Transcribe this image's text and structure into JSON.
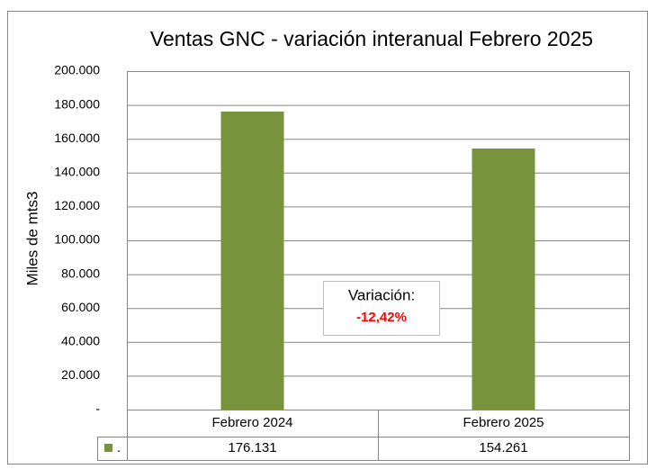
{
  "chart_data": {
    "type": "bar",
    "title": "Ventas GNC - variación interanual Febrero  2025",
    "y_label": "Miles de mts3",
    "categories": [
      "Febrero 2024",
      "Febrero 2025"
    ],
    "series": [
      {
        "name": ".",
        "color": "#77933c",
        "values": [
          176131,
          154261
        ],
        "value_labels": [
          "176.131",
          "154.261"
        ]
      }
    ],
    "ylim": [
      0,
      200000
    ],
    "yticks": [
      {
        "value": 0,
        "label": "-"
      },
      {
        "value": 20000,
        "label": "20.000"
      },
      {
        "value": 40000,
        "label": "40.000"
      },
      {
        "value": 60000,
        "label": "60.000"
      },
      {
        "value": 80000,
        "label": "80.000"
      },
      {
        "value": 100000,
        "label": "100.000"
      },
      {
        "value": 120000,
        "label": "120.000"
      },
      {
        "value": 140000,
        "label": "140.000"
      },
      {
        "value": 160000,
        "label": "160.000"
      },
      {
        "value": 180000,
        "label": "180.000"
      },
      {
        "value": 200000,
        "label": "200.000"
      }
    ],
    "grid": true,
    "annotation": {
      "label": "Variación:",
      "value": "-12,42%"
    }
  }
}
